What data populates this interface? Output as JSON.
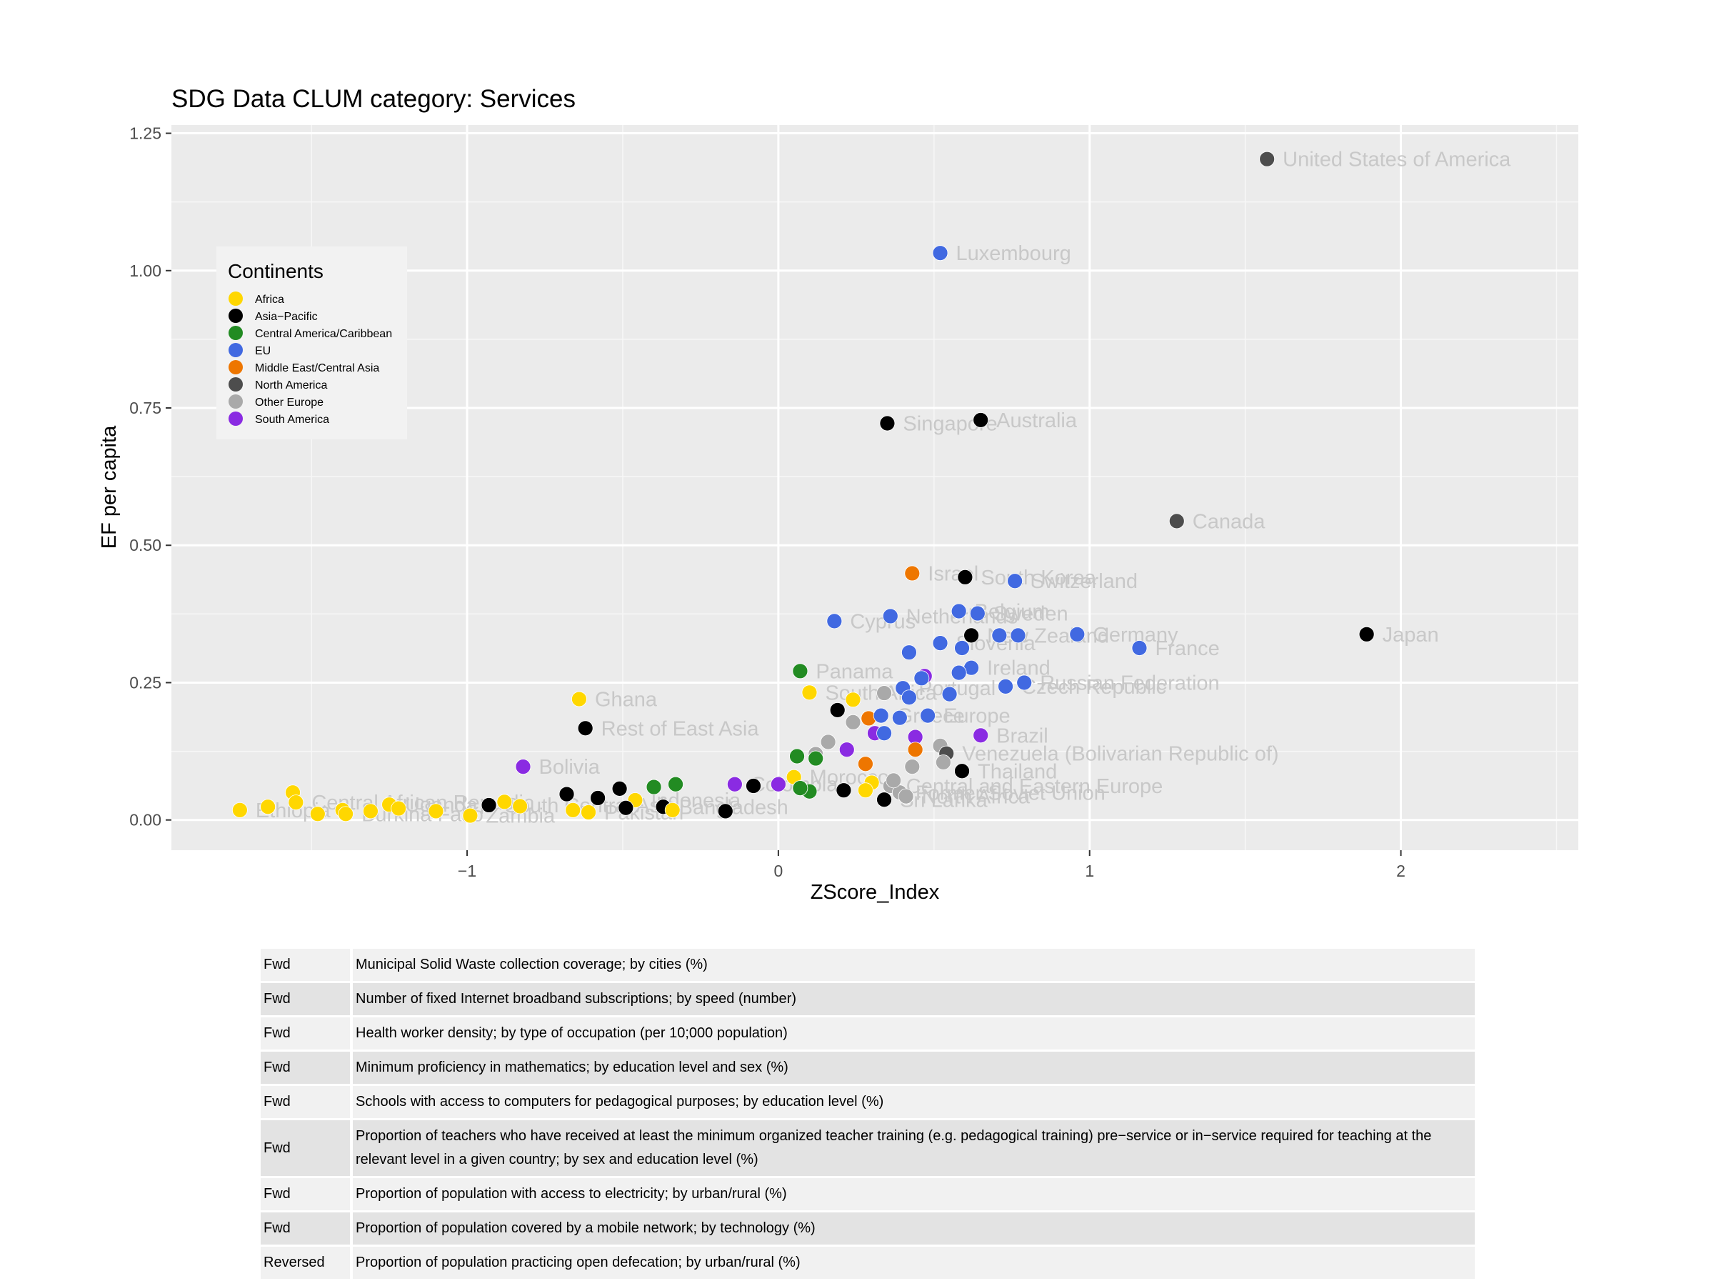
{
  "chart_data": {
    "type": "scatter",
    "title": "SDG Data CLUM category: Services",
    "xlabel": "ZScore_Index",
    "ylabel": "EF per capita",
    "xlim": [
      -1.95,
      2.57
    ],
    "ylim": [
      -0.055,
      1.265
    ],
    "x_ticks": [
      -1,
      0,
      1,
      2
    ],
    "x_tick_labels": [
      "−1",
      "0",
      "1",
      "2"
    ],
    "y_ticks": [
      0,
      0.25,
      0.5,
      0.75,
      1.0,
      1.25
    ],
    "y_tick_labels": [
      "0.00",
      "0.25",
      "0.50",
      "0.75",
      "1.00",
      "1.25"
    ],
    "grid": true,
    "legend": {
      "title": "Continents",
      "placement": "inside-left",
      "entries": [
        {
          "name": "Africa",
          "color": "#FFD700"
        },
        {
          "name": "Asia−Pacific",
          "color": "#000000"
        },
        {
          "name": "Central America/Caribbean",
          "color": "#228B22"
        },
        {
          "name": "EU",
          "color": "#4169E1"
        },
        {
          "name": "Middle East/Central Asia",
          "color": "#EE7600"
        },
        {
          "name": "North America",
          "color": "#4D4D4D"
        },
        {
          "name": "Other Europe",
          "color": "#A9A9A9"
        },
        {
          "name": "South America",
          "color": "#8A2BE2"
        }
      ]
    },
    "points": [
      {
        "x": 1.57,
        "y": 1.203,
        "c": 5,
        "label": "United States of America"
      },
      {
        "x": 0.52,
        "y": 1.032,
        "c": 3,
        "label": "Luxembourg"
      },
      {
        "x": 0.35,
        "y": 0.722,
        "c": 1,
        "label": "Singapore"
      },
      {
        "x": 0.65,
        "y": 0.728,
        "c": 1,
        "label": "Australia"
      },
      {
        "x": 1.28,
        "y": 0.544,
        "c": 5,
        "label": "Canada"
      },
      {
        "x": 0.43,
        "y": 0.449,
        "c": 4,
        "label": "Israel"
      },
      {
        "x": 0.6,
        "y": 0.442,
        "c": 1,
        "label": "South Korea"
      },
      {
        "x": 0.76,
        "y": 0.435,
        "c": 3,
        "label": "Switzerland"
      },
      {
        "x": 0.36,
        "y": 0.371,
        "c": 3,
        "label": "Netherlands"
      },
      {
        "x": 0.58,
        "y": 0.38,
        "c": 3,
        "label": "Belgium"
      },
      {
        "x": 0.64,
        "y": 0.376,
        "c": 3,
        "label": "Sweden"
      },
      {
        "x": 0.18,
        "y": 0.362,
        "c": 3,
        "label": "Cyprus"
      },
      {
        "x": 0.62,
        "y": 0.336,
        "c": 1,
        "label": "New Zealand"
      },
      {
        "x": 0.71,
        "y": 0.336,
        "c": 3,
        "label": ""
      },
      {
        "x": 0.77,
        "y": 0.336,
        "c": 3,
        "label": ""
      },
      {
        "x": 0.96,
        "y": 0.338,
        "c": 3,
        "label": "Germany"
      },
      {
        "x": 1.16,
        "y": 0.313,
        "c": 3,
        "label": "France"
      },
      {
        "x": 1.89,
        "y": 0.338,
        "c": 1,
        "label": "Japan"
      },
      {
        "x": 0.52,
        "y": 0.322,
        "c": 3,
        "label": "Slovenia"
      },
      {
        "x": 0.59,
        "y": 0.313,
        "c": 3,
        "label": ""
      },
      {
        "x": 0.42,
        "y": 0.305,
        "c": 3,
        "label": ""
      },
      {
        "x": 0.07,
        "y": 0.271,
        "c": 2,
        "label": "Panama"
      },
      {
        "x": 0.47,
        "y": 0.262,
        "c": 7,
        "label": ""
      },
      {
        "x": 0.46,
        "y": 0.258,
        "c": 3,
        "label": ""
      },
      {
        "x": 0.62,
        "y": 0.277,
        "c": 3,
        "label": "Ireland"
      },
      {
        "x": 0.58,
        "y": 0.268,
        "c": 3,
        "label": ""
      },
      {
        "x": 0.73,
        "y": 0.243,
        "c": 3,
        "label": "Czech Republic"
      },
      {
        "x": 0.79,
        "y": 0.25,
        "c": 3,
        "label": "Russian Federation"
      },
      {
        "x": 0.1,
        "y": 0.232,
        "c": 0,
        "label": "South Africa"
      },
      {
        "x": 0.24,
        "y": 0.219,
        "c": 0,
        "label": ""
      },
      {
        "x": 0.34,
        "y": 0.231,
        "c": 6,
        "label": ""
      },
      {
        "x": 0.4,
        "y": 0.24,
        "c": 3,
        "label": "Portugal"
      },
      {
        "x": 0.42,
        "y": 0.223,
        "c": 3,
        "label": ""
      },
      {
        "x": 0.55,
        "y": 0.229,
        "c": 3,
        "label": ""
      },
      {
        "x": 0.19,
        "y": 0.2,
        "c": 1,
        "label": ""
      },
      {
        "x": 0.29,
        "y": 0.185,
        "c": 4,
        "label": ""
      },
      {
        "x": 0.33,
        "y": 0.19,
        "c": 3,
        "label": "Greece"
      },
      {
        "x": 0.39,
        "y": 0.186,
        "c": 3,
        "label": ""
      },
      {
        "x": 0.48,
        "y": 0.19,
        "c": 3,
        "label": "Europe"
      },
      {
        "x": 0.24,
        "y": 0.178,
        "c": 6,
        "label": ""
      },
      {
        "x": 0.31,
        "y": 0.158,
        "c": 7,
        "label": ""
      },
      {
        "x": 0.34,
        "y": 0.158,
        "c": 3,
        "label": ""
      },
      {
        "x": 0.44,
        "y": 0.151,
        "c": 7,
        "label": ""
      },
      {
        "x": 0.65,
        "y": 0.154,
        "c": 7,
        "label": "Brazil"
      },
      {
        "x": 0.16,
        "y": 0.142,
        "c": 6,
        "label": ""
      },
      {
        "x": 0.12,
        "y": 0.12,
        "c": 6,
        "label": ""
      },
      {
        "x": 0.22,
        "y": 0.128,
        "c": 7,
        "label": ""
      },
      {
        "x": 0.44,
        "y": 0.128,
        "c": 4,
        "label": ""
      },
      {
        "x": 0.52,
        "y": 0.135,
        "c": 6,
        "label": ""
      },
      {
        "x": 0.54,
        "y": 0.121,
        "c": 5,
        "label": "Venezuela (Bolivarian Republic of)"
      },
      {
        "x": 0.28,
        "y": 0.102,
        "c": 4,
        "label": ""
      },
      {
        "x": 0.43,
        "y": 0.097,
        "c": 6,
        "label": ""
      },
      {
        "x": 0.53,
        "y": 0.105,
        "c": 6,
        "label": ""
      },
      {
        "x": 0.59,
        "y": 0.089,
        "c": 1,
        "label": "Thailand"
      },
      {
        "x": 0.05,
        "y": 0.078,
        "c": 0,
        "label": "Morocco"
      },
      {
        "x": 0.12,
        "y": 0.112,
        "c": 2,
        "label": ""
      },
      {
        "x": 0.06,
        "y": 0.116,
        "c": 2,
        "label": ""
      },
      {
        "x": 0.1,
        "y": 0.052,
        "c": 2,
        "label": ""
      },
      {
        "x": 0.07,
        "y": 0.058,
        "c": 2,
        "label": ""
      },
      {
        "x": 0.3,
        "y": 0.068,
        "c": 0,
        "label": ""
      },
      {
        "x": 0.28,
        "y": 0.054,
        "c": 0,
        "label": ""
      },
      {
        "x": 0.21,
        "y": 0.054,
        "c": 1,
        "label": ""
      },
      {
        "x": 0.34,
        "y": 0.037,
        "c": 1,
        "label": "Sri Lanka"
      },
      {
        "x": 0.36,
        "y": 0.062,
        "c": 6,
        "label": "Central and Eastern Europe"
      },
      {
        "x": 0.39,
        "y": 0.05,
        "c": 6,
        "label": "Former Soviet Union"
      },
      {
        "x": 0.41,
        "y": 0.043,
        "c": 6,
        "label": "North Africa"
      },
      {
        "x": 0.37,
        "y": 0.072,
        "c": 6,
        "label": ""
      },
      {
        "x": -0.14,
        "y": 0.065,
        "c": 7,
        "label": "Colombia"
      },
      {
        "x": -0.08,
        "y": 0.062,
        "c": 1,
        "label": ""
      },
      {
        "x": 0.0,
        "y": 0.065,
        "c": 7,
        "label": ""
      },
      {
        "x": -0.33,
        "y": 0.065,
        "c": 2,
        "label": ""
      },
      {
        "x": -0.4,
        "y": 0.06,
        "c": 2,
        "label": ""
      },
      {
        "x": -0.51,
        "y": 0.057,
        "c": 1,
        "label": ""
      },
      {
        "x": -0.68,
        "y": 0.047,
        "c": 1,
        "label": ""
      },
      {
        "x": -0.58,
        "y": 0.04,
        "c": 1,
        "label": ""
      },
      {
        "x": -0.46,
        "y": 0.036,
        "c": 0,
        "label": "Indonesia"
      },
      {
        "x": -0.82,
        "y": 0.097,
        "c": 7,
        "label": "Bolivia"
      },
      {
        "x": -0.64,
        "y": 0.22,
        "c": 0,
        "label": "Ghana"
      },
      {
        "x": -0.62,
        "y": 0.167,
        "c": 1,
        "label": "Rest of East Asia"
      },
      {
        "x": -0.93,
        "y": 0.027,
        "c": 1,
        "label": "South Central Asia"
      },
      {
        "x": -0.88,
        "y": 0.033,
        "c": 0,
        "label": ""
      },
      {
        "x": -0.83,
        "y": 0.025,
        "c": 0,
        "label": ""
      },
      {
        "x": -0.99,
        "y": 0.008,
        "c": 0,
        "label": "Zambia"
      },
      {
        "x": -0.66,
        "y": 0.018,
        "c": 0,
        "label": ""
      },
      {
        "x": -0.61,
        "y": 0.014,
        "c": 0,
        "label": "Pakistan"
      },
      {
        "x": -0.49,
        "y": 0.022,
        "c": 1,
        "label": ""
      },
      {
        "x": -0.37,
        "y": 0.024,
        "c": 1,
        "label": "Bangladesh"
      },
      {
        "x": -0.34,
        "y": 0.018,
        "c": 0,
        "label": ""
      },
      {
        "x": -0.17,
        "y": 0.016,
        "c": 1,
        "label": ""
      },
      {
        "x": -1.73,
        "y": 0.018,
        "c": 0,
        "label": "Ethiopia"
      },
      {
        "x": -1.64,
        "y": 0.024,
        "c": 0,
        "label": ""
      },
      {
        "x": -1.56,
        "y": 0.05,
        "c": 0,
        "label": ""
      },
      {
        "x": -1.55,
        "y": 0.032,
        "c": 0,
        "label": "Central African Republic"
      },
      {
        "x": -1.48,
        "y": 0.011,
        "c": 0,
        "label": ""
      },
      {
        "x": -1.4,
        "y": 0.018,
        "c": 0,
        "label": ""
      },
      {
        "x": -1.39,
        "y": 0.011,
        "c": 0,
        "label": "Burkina Faso"
      },
      {
        "x": -1.31,
        "y": 0.016,
        "c": 0,
        "label": ""
      },
      {
        "x": -1.25,
        "y": 0.028,
        "c": 0,
        "label": "Uganda"
      },
      {
        "x": -1.22,
        "y": 0.021,
        "c": 0,
        "label": ""
      },
      {
        "x": -1.1,
        "y": 0.016,
        "c": 0,
        "label": ""
      }
    ]
  },
  "indicators": [
    {
      "direction": "Fwd",
      "text": "Municipal Solid Waste collection coverage; by cities (%)"
    },
    {
      "direction": "Fwd",
      "text": "Number of fixed Internet broadband subscriptions; by speed (number)"
    },
    {
      "direction": "Fwd",
      "text": "Health worker density; by type of occupation (per 10;000 population)"
    },
    {
      "direction": "Fwd",
      "text": "Minimum proficiency in mathematics; by education level and sex (%)"
    },
    {
      "direction": "Fwd",
      "text": "Schools with access to computers for pedagogical purposes; by education level (%)"
    },
    {
      "direction": "Fwd",
      "text": "Proportion of teachers who have received at least the minimum organized teacher training (e.g. pedagogical training) pre−service or in−service required for teaching at the relevant level in a given country; by sex and education level (%)"
    },
    {
      "direction": "Fwd",
      "text": "Proportion of population with access to electricity; by urban/rural (%)"
    },
    {
      "direction": "Fwd",
      "text": "Proportion of population covered by a mobile network; by technology (%)"
    },
    {
      "direction": "Reversed",
      "text": "Proportion of population practicing open defecation; by urban/rural (%)"
    }
  ]
}
